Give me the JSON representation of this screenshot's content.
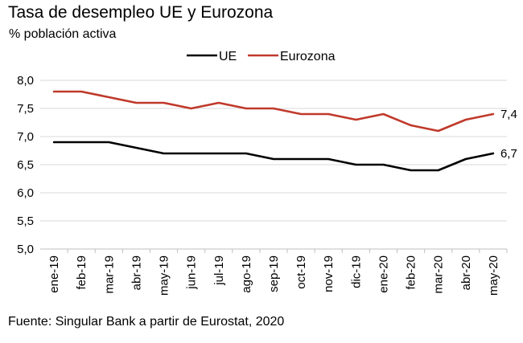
{
  "title": "Tasa de desempleo UE y Eurozona",
  "subtitle": "% población activa",
  "source": "Fuente: Singular Bank a partir de Eurostat, 2020",
  "chart_data": {
    "type": "line",
    "categories": [
      "ene-19",
      "feb-19",
      "mar-19",
      "abr-19",
      "may-19",
      "jun-19",
      "jul-19",
      "ago-19",
      "sep-19",
      "oct-19",
      "nov-19",
      "dic-19",
      "ene-20",
      "feb-20",
      "mar-20",
      "abr-20",
      "may-20"
    ],
    "series": [
      {
        "name": "UE",
        "color": "#000000",
        "values": [
          6.9,
          6.9,
          6.9,
          6.8,
          6.7,
          6.7,
          6.7,
          6.7,
          6.6,
          6.6,
          6.6,
          6.5,
          6.5,
          6.4,
          6.4,
          6.6,
          6.7
        ],
        "end_label": "6,7"
      },
      {
        "name": "Eurozona",
        "color": "#c0392b",
        "values": [
          7.8,
          7.8,
          7.7,
          7.6,
          7.6,
          7.5,
          7.6,
          7.5,
          7.5,
          7.4,
          7.4,
          7.3,
          7.4,
          7.2,
          7.1,
          7.3,
          7.4
        ],
        "end_label": "7,4"
      }
    ],
    "ylim": [
      5.0,
      8.0
    ],
    "yticks": [
      "5,0",
      "5,5",
      "6,0",
      "6,5",
      "7,0",
      "7,5",
      "8,0"
    ],
    "grid": true,
    "legend_position": "top-center"
  }
}
